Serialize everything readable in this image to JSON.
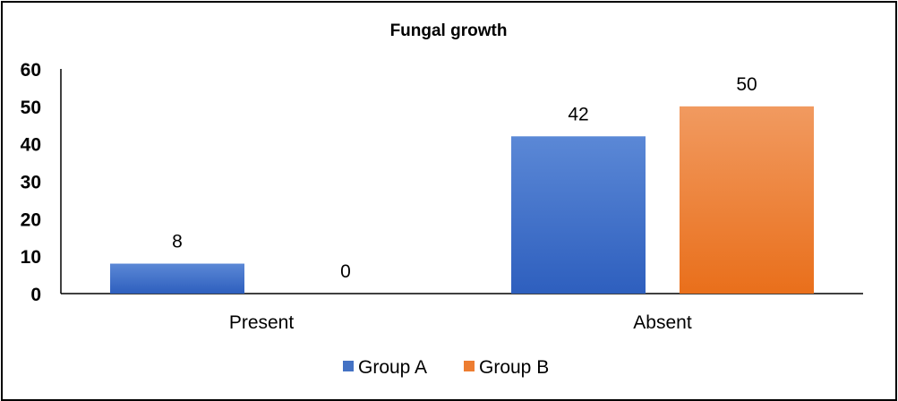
{
  "chart_data": {
    "type": "bar",
    "title": "Fungal growth",
    "xlabel": "",
    "ylabel": "",
    "categories": [
      "Present",
      "Absent"
    ],
    "series": [
      {
        "name": "Group A",
        "values": [
          8,
          42
        ],
        "color": "#4472C4"
      },
      {
        "name": "Group B",
        "values": [
          0,
          50
        ],
        "color": "#ED7D31"
      }
    ],
    "ylim": [
      0,
      60
    ],
    "yticks": [
      0,
      10,
      20,
      30,
      40,
      50,
      60
    ],
    "grid": false,
    "data_labels": true,
    "legend_position": "bottom"
  }
}
